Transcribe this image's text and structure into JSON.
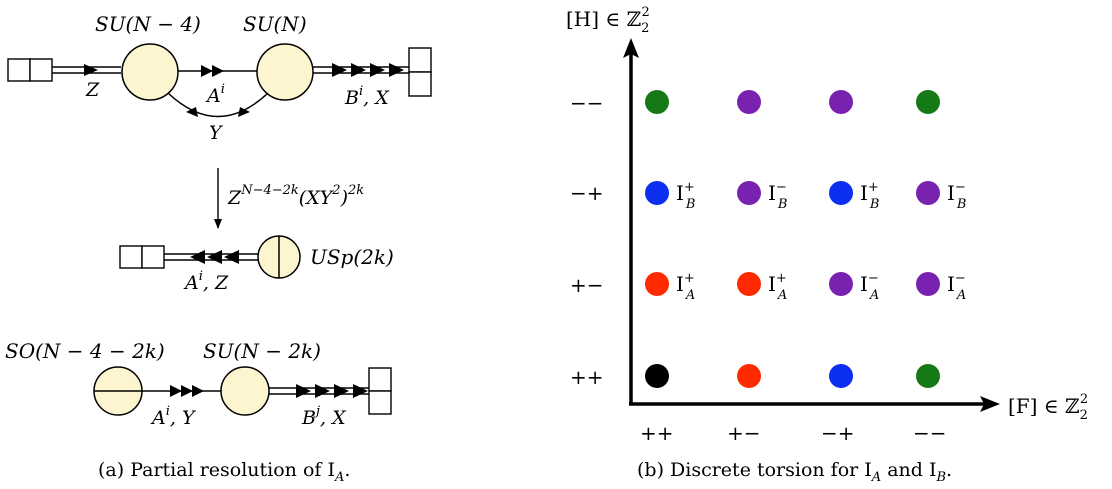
{
  "left": {
    "top_quiver": {
      "node1_label": "SU(N − 4)",
      "node2_label": "SU(N)",
      "z_label": "Z",
      "a_label": "A",
      "a_sup": "i",
      "y_label": "Y",
      "bx_label_b": "B",
      "bx_sup": "i",
      "bx_label_x": ", X"
    },
    "map": {
      "base": "Z",
      "exp1": "N−4−2k",
      "mid": "(XY",
      "sq": "2",
      "close": ")",
      "exp2": "2k"
    },
    "usp_quiver": {
      "node_label": "USp(2k)",
      "az_a": "A",
      "az_sup": "i",
      "az_z": ", Z"
    },
    "bottom_quiver": {
      "node1_label": "SO(N − 4 − 2k)",
      "node2_label": "SU(N − 2k)",
      "ay_a": "A",
      "ay_sup": "i",
      "ay_y": ", Y",
      "bx_b": "B",
      "bx_sup": "j",
      "bx_x": ", X"
    },
    "caption": "(a) Partial resolution of I",
    "caption_sub": "A",
    "caption_end": "."
  },
  "right": {
    "y_axis_label": "[H] ∈ ℤ",
    "y_axis_sub": "2",
    "y_axis_sup": "2",
    "x_axis_label": "[F] ∈ ℤ",
    "x_axis_sub": "2",
    "x_axis_sup": "2",
    "x_ticks": [
      "++",
      "+−",
      "−+",
      "−−"
    ],
    "y_ticks": [
      "−−",
      "−+",
      "+−",
      "++"
    ],
    "colors": {
      "green": "#157a15",
      "purple": "#7a22b0",
      "blue": "#0b2ef0",
      "red": "#ff2a00",
      "black": "#000000"
    },
    "rows": [
      {
        "tick": "−−",
        "cells": [
          {
            "color": "green",
            "label": "",
            "sub": "",
            "sup": ""
          },
          {
            "color": "purple",
            "label": "",
            "sub": "",
            "sup": ""
          },
          {
            "color": "purple",
            "label": "",
            "sub": "",
            "sup": ""
          },
          {
            "color": "green",
            "label": "",
            "sub": "",
            "sup": ""
          }
        ]
      },
      {
        "tick": "−+",
        "cells": [
          {
            "color": "blue",
            "label": "I",
            "sub": "B",
            "sup": "+"
          },
          {
            "color": "purple",
            "label": "I",
            "sub": "B",
            "sup": "−"
          },
          {
            "color": "blue",
            "label": "I",
            "sub": "B",
            "sup": "+"
          },
          {
            "color": "purple",
            "label": "I",
            "sub": "B",
            "sup": "−"
          }
        ]
      },
      {
        "tick": "+−",
        "cells": [
          {
            "color": "red",
            "label": "I",
            "sub": "A",
            "sup": "+"
          },
          {
            "color": "red",
            "label": "I",
            "sub": "A",
            "sup": "+"
          },
          {
            "color": "purple",
            "label": "I",
            "sub": "A",
            "sup": "−"
          },
          {
            "color": "purple",
            "label": "I",
            "sub": "A",
            "sup": "−"
          }
        ]
      },
      {
        "tick": "++",
        "cells": [
          {
            "color": "black",
            "label": "",
            "sub": "",
            "sup": ""
          },
          {
            "color": "red",
            "label": "",
            "sub": "",
            "sup": ""
          },
          {
            "color": "blue",
            "label": "",
            "sub": "",
            "sup": ""
          },
          {
            "color": "green",
            "label": "",
            "sub": "",
            "sup": ""
          }
        ]
      }
    ],
    "caption": "(b) Discrete torsion for I",
    "caption_sub1": "A",
    "caption_mid": " and I",
    "caption_sub2": "B",
    "caption_end": "."
  }
}
